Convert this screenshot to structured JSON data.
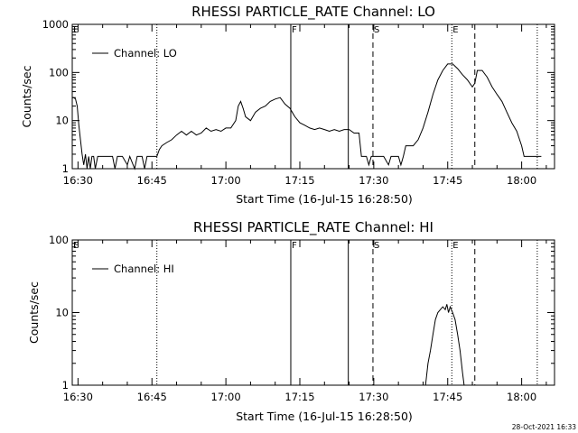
{
  "chart_data": [
    {
      "type": "line",
      "title": "RHESSI  PARTICLE_RATE  Channel:  LO",
      "xlabel": "Start Time (16-Jul-15 16:28:50)",
      "ylabel": "Counts/sec",
      "yscale": "log",
      "xlim": [
        "16:28:50",
        "18:06:40"
      ],
      "ylim": [
        1,
        1000
      ],
      "x_tick_labels": [
        "16:30",
        "16:45",
        "17:00",
        "17:15",
        "17:30",
        "17:45",
        "18:00"
      ],
      "y_tick_labels": [
        "1",
        "10",
        "100",
        "1000"
      ],
      "legend": "Channel: LO",
      "series": [
        {
          "name": "Channel: LO",
          "points": [
            [
              "16:28:50",
              30
            ],
            [
              "16:29:10",
              30
            ],
            [
              "16:29:30",
              28
            ],
            [
              "16:29:50",
              20
            ],
            [
              "16:30:10",
              8
            ],
            [
              "16:30:30",
              4
            ],
            [
              "16:30:50",
              2
            ],
            [
              "16:31:10",
              1.2
            ],
            [
              "16:31:30",
              2
            ],
            [
              "16:31:50",
              1
            ],
            [
              "16:32:10",
              1.8
            ],
            [
              "16:32:30",
              1
            ],
            [
              "16:32:50",
              1.8
            ],
            [
              "16:33:10",
              1.8
            ],
            [
              "16:33:30",
              1
            ],
            [
              "16:34:00",
              1.8
            ],
            [
              "16:35:00",
              1.8
            ],
            [
              "16:36:00",
              1.8
            ],
            [
              "16:37:00",
              1.8
            ],
            [
              "16:37:30",
              1
            ],
            [
              "16:38:00",
              1.8
            ],
            [
              "16:39:00",
              1.8
            ],
            [
              "16:40:00",
              1.2
            ],
            [
              "16:40:30",
              1.8
            ],
            [
              "16:41:30",
              1
            ],
            [
              "16:42:00",
              1.8
            ],
            [
              "16:43:00",
              1.8
            ],
            [
              "16:43:30",
              1
            ],
            [
              "16:44:00",
              1.8
            ],
            [
              "16:45:00",
              1.8
            ],
            [
              "16:46:00",
              1.8
            ],
            [
              "16:46:30",
              2.5
            ],
            [
              "16:47:00",
              3
            ],
            [
              "16:48:00",
              3.5
            ],
            [
              "16:49:00",
              4
            ],
            [
              "16:50:00",
              5
            ],
            [
              "16:51:00",
              6
            ],
            [
              "16:52:00",
              5
            ],
            [
              "16:53:00",
              6
            ],
            [
              "16:54:00",
              5
            ],
            [
              "16:55:00",
              5.5
            ],
            [
              "16:56:00",
              7
            ],
            [
              "16:57:00",
              6
            ],
            [
              "16:58:00",
              6.5
            ],
            [
              "16:59:00",
              6
            ],
            [
              "17:00:00",
              7
            ],
            [
              "17:01:00",
              7
            ],
            [
              "17:02:00",
              10
            ],
            [
              "17:02:30",
              20
            ],
            [
              "17:03:00",
              25
            ],
            [
              "17:03:30",
              18
            ],
            [
              "17:04:00",
              12
            ],
            [
              "17:05:00",
              10
            ],
            [
              "17:06:00",
              15
            ],
            [
              "17:07:00",
              18
            ],
            [
              "17:08:00",
              20
            ],
            [
              "17:09:00",
              25
            ],
            [
              "17:10:00",
              28
            ],
            [
              "17:11:00",
              30
            ],
            [
              "17:12:00",
              22
            ],
            [
              "17:13:00",
              18
            ],
            [
              "17:14:00",
              12
            ],
            [
              "17:15:00",
              9
            ],
            [
              "17:16:00",
              8
            ],
            [
              "17:17:00",
              7
            ],
            [
              "17:18:00",
              6.5
            ],
            [
              "17:19:00",
              7
            ],
            [
              "17:20:00",
              6.5
            ],
            [
              "17:21:00",
              6
            ],
            [
              "17:22:00",
              6.5
            ],
            [
              "17:23:00",
              6
            ],
            [
              "17:24:00",
              6.5
            ],
            [
              "17:25:00",
              6.5
            ],
            [
              "17:26:00",
              5.5
            ],
            [
              "17:27:00",
              5.5
            ],
            [
              "17:27:30",
              1.8
            ],
            [
              "17:28:30",
              1.8
            ],
            [
              "17:29:00",
              1.2
            ],
            [
              "17:29:30",
              1.8
            ],
            [
              "17:30:00",
              1.8
            ],
            [
              "17:31:00",
              1.8
            ],
            [
              "17:32:00",
              1.8
            ],
            [
              "17:33:00",
              1.2
            ],
            [
              "17:33:30",
              1.8
            ],
            [
              "17:34:00",
              1.8
            ],
            [
              "17:35:00",
              1.8
            ],
            [
              "17:35:30",
              1.2
            ],
            [
              "17:36:00",
              1.8
            ],
            [
              "17:36:30",
              3
            ],
            [
              "17:37:00",
              3
            ],
            [
              "17:38:00",
              3
            ],
            [
              "17:39:00",
              4
            ],
            [
              "17:40:00",
              7
            ],
            [
              "17:41:00",
              15
            ],
            [
              "17:42:00",
              35
            ],
            [
              "17:43:00",
              70
            ],
            [
              "17:44:00",
              110
            ],
            [
              "17:45:00",
              150
            ],
            [
              "17:46:00",
              150
            ],
            [
              "17:47:00",
              120
            ],
            [
              "17:48:00",
              90
            ],
            [
              "17:49:00",
              70
            ],
            [
              "17:50:00",
              50
            ],
            [
              "17:50:30",
              60
            ],
            [
              "17:51:00",
              110
            ],
            [
              "17:52:00",
              110
            ],
            [
              "17:53:00",
              80
            ],
            [
              "17:54:00",
              50
            ],
            [
              "17:55:00",
              35
            ],
            [
              "17:56:00",
              25
            ],
            [
              "17:57:00",
              15
            ],
            [
              "17:58:00",
              9
            ],
            [
              "17:59:00",
              6
            ],
            [
              "18:00:00",
              3
            ],
            [
              "18:00:30",
              1.8
            ],
            [
              "18:02:00",
              1.8
            ],
            [
              "18:04:00",
              1.8
            ]
          ]
        }
      ],
      "markers": [
        {
          "label": "E",
          "time": "16:28:50",
          "style": "dotted"
        },
        {
          "label": "",
          "time": "16:46:00",
          "style": "dotted"
        },
        {
          "label": "F",
          "time": "17:13:10",
          "style": "solid"
        },
        {
          "label": "",
          "time": "17:24:50",
          "style": "solid"
        },
        {
          "label": "S",
          "time": "17:29:50",
          "style": "dashed"
        },
        {
          "label": "E",
          "time": "17:45:50",
          "style": "dotted"
        },
        {
          "label": "",
          "time": "17:50:30",
          "style": "dashed"
        },
        {
          "label": "",
          "time": "18:03:10",
          "style": "dotted"
        }
      ]
    },
    {
      "type": "line",
      "title": "RHESSI  PARTICLE_RATE  Channel:  HI",
      "xlabel": "Start Time (16-Jul-15 16:28:50)",
      "ylabel": "Counts/sec",
      "yscale": "log",
      "xlim": [
        "16:28:50",
        "18:06:40"
      ],
      "ylim": [
        1,
        100
      ],
      "x_tick_labels": [
        "16:30",
        "16:45",
        "17:00",
        "17:15",
        "17:30",
        "17:45",
        "18:00"
      ],
      "y_tick_labels": [
        "1",
        "10",
        "100"
      ],
      "legend": "Channel: HI",
      "series": [
        {
          "name": "Channel: HI",
          "points": [
            [
              "17:40:30",
              1
            ],
            [
              "17:41:00",
              2
            ],
            [
              "17:41:30",
              3
            ],
            [
              "17:42:00",
              5
            ],
            [
              "17:42:30",
              8
            ],
            [
              "17:43:00",
              10
            ],
            [
              "17:43:30",
              11
            ],
            [
              "17:44:00",
              12
            ],
            [
              "17:44:30",
              11
            ],
            [
              "17:44:50",
              13
            ],
            [
              "17:45:10",
              10
            ],
            [
              "17:45:30",
              12
            ],
            [
              "17:46:00",
              10
            ],
            [
              "17:46:30",
              8
            ],
            [
              "17:47:00",
              5
            ],
            [
              "17:47:30",
              3
            ],
            [
              "17:48:00",
              1.5
            ],
            [
              "17:48:20",
              1
            ]
          ]
        }
      ],
      "markers": [
        {
          "label": "E",
          "time": "16:28:50",
          "style": "dotted"
        },
        {
          "label": "",
          "time": "16:46:00",
          "style": "dotted"
        },
        {
          "label": "F",
          "time": "17:13:10",
          "style": "solid"
        },
        {
          "label": "",
          "time": "17:24:50",
          "style": "solid"
        },
        {
          "label": "S",
          "time": "17:29:50",
          "style": "dashed"
        },
        {
          "label": "E",
          "time": "17:45:50",
          "style": "dotted"
        },
        {
          "label": "",
          "time": "17:50:30",
          "style": "dashed"
        },
        {
          "label": "",
          "time": "18:03:10",
          "style": "dotted"
        }
      ]
    }
  ],
  "footer": {
    "timestamp": "28-Oct-2021 16:33"
  },
  "colors": {
    "foreground": "#000000",
    "background": "#ffffff"
  }
}
